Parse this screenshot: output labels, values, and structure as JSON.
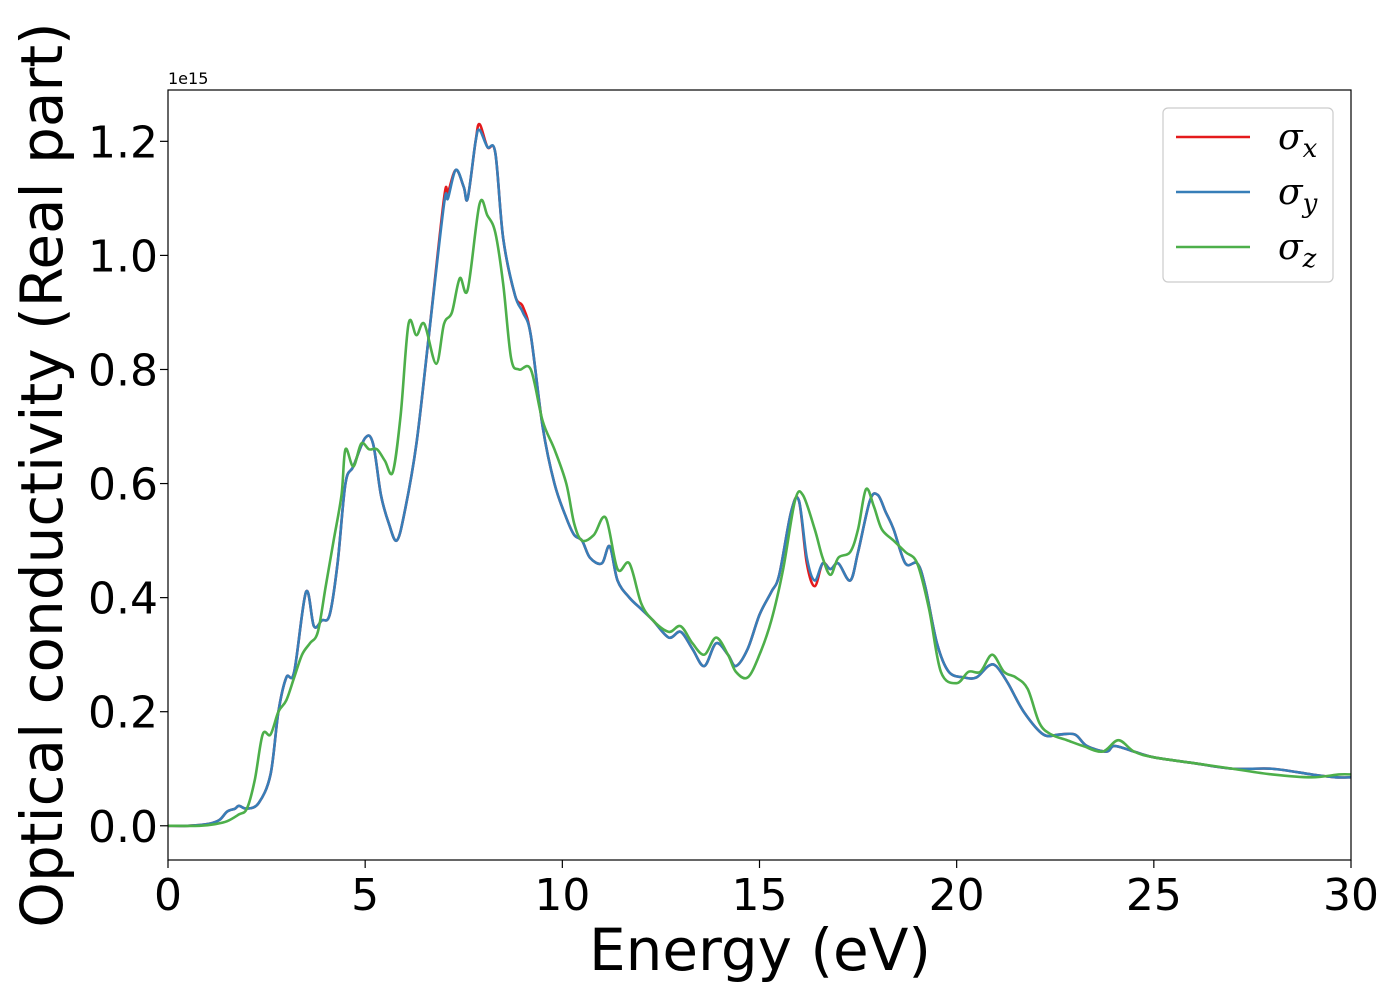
{
  "chart_data": {
    "type": "line",
    "xlabel": "Energy (eV)",
    "ylabel": "Optical conductivity (Real part)",
    "y_offset_label": "1e15",
    "y_scale_multiplier": 1000000000000000.0,
    "xlim": [
      0,
      30
    ],
    "ylim": [
      -0.06,
      1.29
    ],
    "x_ticks": [
      0,
      5,
      10,
      15,
      20,
      25,
      30
    ],
    "x_tick_labels": [
      "0",
      "5",
      "10",
      "15",
      "20",
      "25",
      "30"
    ],
    "y_ticks": [
      0.0,
      0.2,
      0.4,
      0.6,
      0.8,
      1.0,
      1.2
    ],
    "y_tick_labels": [
      "0.0",
      "0.2",
      "0.4",
      "0.6",
      "0.8",
      "1.0",
      "1.2"
    ],
    "grid": false,
    "legend_position": "top-right",
    "series": [
      {
        "name": "σx",
        "symbol": "σ",
        "subscript": "x",
        "color": "#e41a1c",
        "points": [
          [
            0,
            0
          ],
          [
            0.5,
            0
          ],
          [
            1,
            0.003
          ],
          [
            1.3,
            0.01
          ],
          [
            1.5,
            0.025
          ],
          [
            1.7,
            0.03
          ],
          [
            1.8,
            0.035
          ],
          [
            2,
            0.03
          ],
          [
            2.3,
            0.04
          ],
          [
            2.6,
            0.09
          ],
          [
            2.8,
            0.2
          ],
          [
            3,
            0.26
          ],
          [
            3.2,
            0.27
          ],
          [
            3.5,
            0.41
          ],
          [
            3.7,
            0.35
          ],
          [
            3.9,
            0.36
          ],
          [
            4.1,
            0.37
          ],
          [
            4.3,
            0.46
          ],
          [
            4.5,
            0.6
          ],
          [
            4.7,
            0.63
          ],
          [
            5,
            0.68
          ],
          [
            5.2,
            0.67
          ],
          [
            5.4,
            0.58
          ],
          [
            5.6,
            0.53
          ],
          [
            5.8,
            0.5
          ],
          [
            6,
            0.55
          ],
          [
            6.3,
            0.67
          ],
          [
            6.6,
            0.85
          ],
          [
            7,
            1.1
          ],
          [
            7.1,
            1.11
          ],
          [
            7.3,
            1.15
          ],
          [
            7.5,
            1.12
          ],
          [
            7.6,
            1.1
          ],
          [
            7.8,
            1.2
          ],
          [
            7.9,
            1.23
          ],
          [
            8.1,
            1.19
          ],
          [
            8.3,
            1.18
          ],
          [
            8.5,
            1.03
          ],
          [
            8.8,
            0.93
          ],
          [
            9,
            0.91
          ],
          [
            9.2,
            0.86
          ],
          [
            9.5,
            0.7
          ],
          [
            9.8,
            0.6
          ],
          [
            10.1,
            0.54
          ],
          [
            10.3,
            0.51
          ],
          [
            10.5,
            0.5
          ],
          [
            10.7,
            0.47
          ],
          [
            11,
            0.46
          ],
          [
            11.2,
            0.49
          ],
          [
            11.4,
            0.43
          ],
          [
            11.7,
            0.4
          ],
          [
            12,
            0.38
          ],
          [
            12.3,
            0.36
          ],
          [
            12.7,
            0.33
          ],
          [
            13,
            0.34
          ],
          [
            13.3,
            0.31
          ],
          [
            13.6,
            0.28
          ],
          [
            13.9,
            0.32
          ],
          [
            14.2,
            0.3
          ],
          [
            14.4,
            0.28
          ],
          [
            14.7,
            0.31
          ],
          [
            15,
            0.37
          ],
          [
            15.3,
            0.41
          ],
          [
            15.5,
            0.44
          ],
          [
            15.8,
            0.55
          ],
          [
            16,
            0.57
          ],
          [
            16.2,
            0.46
          ],
          [
            16.4,
            0.42
          ],
          [
            16.6,
            0.46
          ],
          [
            16.8,
            0.45
          ],
          [
            17,
            0.46
          ],
          [
            17.3,
            0.43
          ],
          [
            17.5,
            0.48
          ],
          [
            17.8,
            0.57
          ],
          [
            18,
            0.58
          ],
          [
            18.2,
            0.55
          ],
          [
            18.4,
            0.52
          ],
          [
            18.7,
            0.46
          ],
          [
            19,
            0.46
          ],
          [
            19.2,
            0.42
          ],
          [
            19.5,
            0.32
          ],
          [
            19.8,
            0.27
          ],
          [
            20.2,
            0.26
          ],
          [
            20.5,
            0.26
          ],
          [
            20.8,
            0.28
          ],
          [
            21,
            0.28
          ],
          [
            21.3,
            0.25
          ],
          [
            21.7,
            0.2
          ],
          [
            22.2,
            0.16
          ],
          [
            22.6,
            0.16
          ],
          [
            23,
            0.16
          ],
          [
            23.3,
            0.14
          ],
          [
            23.8,
            0.13
          ],
          [
            24,
            0.14
          ],
          [
            24.5,
            0.13
          ],
          [
            25,
            0.12
          ],
          [
            26,
            0.11
          ],
          [
            27,
            0.1
          ],
          [
            28,
            0.1
          ],
          [
            29,
            0.09
          ],
          [
            29.6,
            0.085
          ],
          [
            30,
            0.085
          ]
        ]
      },
      {
        "name": "σy",
        "symbol": "σ",
        "subscript": "y",
        "color": "#377eb8",
        "points": [
          [
            0,
            0
          ],
          [
            0.5,
            0
          ],
          [
            1,
            0.003
          ],
          [
            1.3,
            0.01
          ],
          [
            1.5,
            0.025
          ],
          [
            1.7,
            0.03
          ],
          [
            1.8,
            0.035
          ],
          [
            2,
            0.03
          ],
          [
            2.3,
            0.04
          ],
          [
            2.6,
            0.09
          ],
          [
            2.8,
            0.2
          ],
          [
            3,
            0.26
          ],
          [
            3.2,
            0.27
          ],
          [
            3.5,
            0.41
          ],
          [
            3.7,
            0.35
          ],
          [
            3.9,
            0.36
          ],
          [
            4.1,
            0.37
          ],
          [
            4.3,
            0.46
          ],
          [
            4.5,
            0.6
          ],
          [
            4.7,
            0.63
          ],
          [
            5,
            0.68
          ],
          [
            5.2,
            0.67
          ],
          [
            5.4,
            0.58
          ],
          [
            5.6,
            0.53
          ],
          [
            5.8,
            0.5
          ],
          [
            6,
            0.55
          ],
          [
            6.3,
            0.67
          ],
          [
            6.6,
            0.85
          ],
          [
            7,
            1.09
          ],
          [
            7.1,
            1.1
          ],
          [
            7.3,
            1.15
          ],
          [
            7.5,
            1.12
          ],
          [
            7.6,
            1.1
          ],
          [
            7.8,
            1.2
          ],
          [
            7.9,
            1.22
          ],
          [
            8.1,
            1.19
          ],
          [
            8.3,
            1.18
          ],
          [
            8.5,
            1.03
          ],
          [
            8.8,
            0.93
          ],
          [
            9,
            0.9
          ],
          [
            9.2,
            0.86
          ],
          [
            9.5,
            0.7
          ],
          [
            9.8,
            0.6
          ],
          [
            10.1,
            0.54
          ],
          [
            10.3,
            0.51
          ],
          [
            10.5,
            0.5
          ],
          [
            10.7,
            0.47
          ],
          [
            11,
            0.46
          ],
          [
            11.2,
            0.49
          ],
          [
            11.4,
            0.43
          ],
          [
            11.7,
            0.4
          ],
          [
            12,
            0.38
          ],
          [
            12.3,
            0.36
          ],
          [
            12.7,
            0.33
          ],
          [
            13,
            0.34
          ],
          [
            13.3,
            0.31
          ],
          [
            13.6,
            0.28
          ],
          [
            13.9,
            0.32
          ],
          [
            14.2,
            0.3
          ],
          [
            14.4,
            0.28
          ],
          [
            14.7,
            0.31
          ],
          [
            15,
            0.37
          ],
          [
            15.3,
            0.41
          ],
          [
            15.5,
            0.44
          ],
          [
            15.8,
            0.55
          ],
          [
            16,
            0.57
          ],
          [
            16.2,
            0.47
          ],
          [
            16.4,
            0.43
          ],
          [
            16.6,
            0.46
          ],
          [
            16.8,
            0.45
          ],
          [
            17,
            0.46
          ],
          [
            17.3,
            0.43
          ],
          [
            17.5,
            0.48
          ],
          [
            17.8,
            0.57
          ],
          [
            18,
            0.58
          ],
          [
            18.2,
            0.55
          ],
          [
            18.4,
            0.52
          ],
          [
            18.7,
            0.46
          ],
          [
            19,
            0.46
          ],
          [
            19.2,
            0.42
          ],
          [
            19.5,
            0.32
          ],
          [
            19.8,
            0.27
          ],
          [
            20.2,
            0.26
          ],
          [
            20.5,
            0.26
          ],
          [
            20.8,
            0.28
          ],
          [
            21,
            0.28
          ],
          [
            21.3,
            0.25
          ],
          [
            21.7,
            0.2
          ],
          [
            22.2,
            0.16
          ],
          [
            22.6,
            0.16
          ],
          [
            23,
            0.16
          ],
          [
            23.3,
            0.14
          ],
          [
            23.8,
            0.13
          ],
          [
            24,
            0.14
          ],
          [
            24.5,
            0.13
          ],
          [
            25,
            0.12
          ],
          [
            26,
            0.11
          ],
          [
            27,
            0.1
          ],
          [
            28,
            0.1
          ],
          [
            29,
            0.09
          ],
          [
            29.6,
            0.085
          ],
          [
            30,
            0.085
          ]
        ]
      },
      {
        "name": "σz",
        "symbol": "σ",
        "subscript": "z",
        "color": "#4daf4a",
        "points": [
          [
            0,
            0
          ],
          [
            0.8,
            0
          ],
          [
            1.2,
            0.003
          ],
          [
            1.5,
            0.008
          ],
          [
            1.8,
            0.02
          ],
          [
            2,
            0.03
          ],
          [
            2.2,
            0.08
          ],
          [
            2.4,
            0.16
          ],
          [
            2.6,
            0.16
          ],
          [
            2.8,
            0.2
          ],
          [
            3,
            0.22
          ],
          [
            3.2,
            0.26
          ],
          [
            3.4,
            0.3
          ],
          [
            3.6,
            0.32
          ],
          [
            3.8,
            0.34
          ],
          [
            4,
            0.42
          ],
          [
            4.2,
            0.5
          ],
          [
            4.4,
            0.58
          ],
          [
            4.5,
            0.66
          ],
          [
            4.7,
            0.63
          ],
          [
            4.9,
            0.67
          ],
          [
            5.1,
            0.66
          ],
          [
            5.3,
            0.66
          ],
          [
            5.5,
            0.64
          ],
          [
            5.7,
            0.62
          ],
          [
            5.9,
            0.72
          ],
          [
            6.1,
            0.88
          ],
          [
            6.3,
            0.86
          ],
          [
            6.5,
            0.88
          ],
          [
            6.8,
            0.81
          ],
          [
            7,
            0.88
          ],
          [
            7.2,
            0.9
          ],
          [
            7.4,
            0.96
          ],
          [
            7.6,
            0.94
          ],
          [
            7.9,
            1.09
          ],
          [
            8.1,
            1.07
          ],
          [
            8.3,
            1.04
          ],
          [
            8.5,
            0.95
          ],
          [
            8.7,
            0.82
          ],
          [
            8.9,
            0.8
          ],
          [
            9.2,
            0.8
          ],
          [
            9.5,
            0.71
          ],
          [
            9.8,
            0.66
          ],
          [
            10.1,
            0.6
          ],
          [
            10.3,
            0.53
          ],
          [
            10.5,
            0.5
          ],
          [
            10.8,
            0.51
          ],
          [
            11.1,
            0.54
          ],
          [
            11.4,
            0.45
          ],
          [
            11.7,
            0.46
          ],
          [
            12,
            0.39
          ],
          [
            12.3,
            0.36
          ],
          [
            12.7,
            0.34
          ],
          [
            13,
            0.35
          ],
          [
            13.3,
            0.32
          ],
          [
            13.6,
            0.3
          ],
          [
            13.9,
            0.33
          ],
          [
            14.2,
            0.3
          ],
          [
            14.4,
            0.27
          ],
          [
            14.7,
            0.26
          ],
          [
            15,
            0.3
          ],
          [
            15.3,
            0.36
          ],
          [
            15.6,
            0.45
          ],
          [
            15.9,
            0.57
          ],
          [
            16.1,
            0.58
          ],
          [
            16.4,
            0.52
          ],
          [
            16.6,
            0.47
          ],
          [
            16.8,
            0.44
          ],
          [
            17,
            0.47
          ],
          [
            17.3,
            0.48
          ],
          [
            17.5,
            0.52
          ],
          [
            17.7,
            0.59
          ],
          [
            17.9,
            0.56
          ],
          [
            18.1,
            0.52
          ],
          [
            18.4,
            0.5
          ],
          [
            18.7,
            0.48
          ],
          [
            19,
            0.46
          ],
          [
            19.3,
            0.38
          ],
          [
            19.6,
            0.27
          ],
          [
            20,
            0.25
          ],
          [
            20.3,
            0.27
          ],
          [
            20.6,
            0.27
          ],
          [
            20.9,
            0.3
          ],
          [
            21.2,
            0.27
          ],
          [
            21.5,
            0.26
          ],
          [
            21.8,
            0.24
          ],
          [
            22.1,
            0.18
          ],
          [
            22.4,
            0.16
          ],
          [
            22.8,
            0.15
          ],
          [
            23.2,
            0.14
          ],
          [
            23.7,
            0.13
          ],
          [
            24.1,
            0.15
          ],
          [
            24.5,
            0.13
          ],
          [
            25,
            0.12
          ],
          [
            26,
            0.11
          ],
          [
            27,
            0.1
          ],
          [
            28,
            0.09
          ],
          [
            29,
            0.085
          ],
          [
            29.7,
            0.09
          ],
          [
            30,
            0.09
          ]
        ]
      }
    ]
  }
}
